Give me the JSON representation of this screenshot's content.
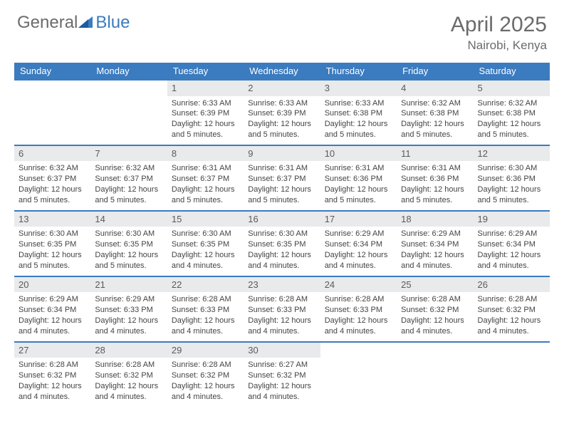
{
  "logo": {
    "text1": "General",
    "text2": "Blue"
  },
  "title": "April 2025",
  "location": "Nairobi, Kenya",
  "colors": {
    "header_bg": "#3b7bbf",
    "header_text": "#ffffff",
    "daynum_bg": "#e9eaec",
    "row_border": "#3b7bbf",
    "body_text": "#444444",
    "title_text": "#6b6b6b"
  },
  "weekdays": [
    "Sunday",
    "Monday",
    "Tuesday",
    "Wednesday",
    "Thursday",
    "Friday",
    "Saturday"
  ],
  "weeks": [
    {
      "nums": [
        "",
        "",
        "1",
        "2",
        "3",
        "4",
        "5"
      ],
      "cells": [
        null,
        null,
        {
          "sunrise": "Sunrise: 6:33 AM",
          "sunset": "Sunset: 6:39 PM",
          "day1": "Daylight: 12 hours",
          "day2": "and 5 minutes."
        },
        {
          "sunrise": "Sunrise: 6:33 AM",
          "sunset": "Sunset: 6:39 PM",
          "day1": "Daylight: 12 hours",
          "day2": "and 5 minutes."
        },
        {
          "sunrise": "Sunrise: 6:33 AM",
          "sunset": "Sunset: 6:38 PM",
          "day1": "Daylight: 12 hours",
          "day2": "and 5 minutes."
        },
        {
          "sunrise": "Sunrise: 6:32 AM",
          "sunset": "Sunset: 6:38 PM",
          "day1": "Daylight: 12 hours",
          "day2": "and 5 minutes."
        },
        {
          "sunrise": "Sunrise: 6:32 AM",
          "sunset": "Sunset: 6:38 PM",
          "day1": "Daylight: 12 hours",
          "day2": "and 5 minutes."
        }
      ]
    },
    {
      "nums": [
        "6",
        "7",
        "8",
        "9",
        "10",
        "11",
        "12"
      ],
      "cells": [
        {
          "sunrise": "Sunrise: 6:32 AM",
          "sunset": "Sunset: 6:37 PM",
          "day1": "Daylight: 12 hours",
          "day2": "and 5 minutes."
        },
        {
          "sunrise": "Sunrise: 6:32 AM",
          "sunset": "Sunset: 6:37 PM",
          "day1": "Daylight: 12 hours",
          "day2": "and 5 minutes."
        },
        {
          "sunrise": "Sunrise: 6:31 AM",
          "sunset": "Sunset: 6:37 PM",
          "day1": "Daylight: 12 hours",
          "day2": "and 5 minutes."
        },
        {
          "sunrise": "Sunrise: 6:31 AM",
          "sunset": "Sunset: 6:37 PM",
          "day1": "Daylight: 12 hours",
          "day2": "and 5 minutes."
        },
        {
          "sunrise": "Sunrise: 6:31 AM",
          "sunset": "Sunset: 6:36 PM",
          "day1": "Daylight: 12 hours",
          "day2": "and 5 minutes."
        },
        {
          "sunrise": "Sunrise: 6:31 AM",
          "sunset": "Sunset: 6:36 PM",
          "day1": "Daylight: 12 hours",
          "day2": "and 5 minutes."
        },
        {
          "sunrise": "Sunrise: 6:30 AM",
          "sunset": "Sunset: 6:36 PM",
          "day1": "Daylight: 12 hours",
          "day2": "and 5 minutes."
        }
      ]
    },
    {
      "nums": [
        "13",
        "14",
        "15",
        "16",
        "17",
        "18",
        "19"
      ],
      "cells": [
        {
          "sunrise": "Sunrise: 6:30 AM",
          "sunset": "Sunset: 6:35 PM",
          "day1": "Daylight: 12 hours",
          "day2": "and 5 minutes."
        },
        {
          "sunrise": "Sunrise: 6:30 AM",
          "sunset": "Sunset: 6:35 PM",
          "day1": "Daylight: 12 hours",
          "day2": "and 5 minutes."
        },
        {
          "sunrise": "Sunrise: 6:30 AM",
          "sunset": "Sunset: 6:35 PM",
          "day1": "Daylight: 12 hours",
          "day2": "and 4 minutes."
        },
        {
          "sunrise": "Sunrise: 6:30 AM",
          "sunset": "Sunset: 6:35 PM",
          "day1": "Daylight: 12 hours",
          "day2": "and 4 minutes."
        },
        {
          "sunrise": "Sunrise: 6:29 AM",
          "sunset": "Sunset: 6:34 PM",
          "day1": "Daylight: 12 hours",
          "day2": "and 4 minutes."
        },
        {
          "sunrise": "Sunrise: 6:29 AM",
          "sunset": "Sunset: 6:34 PM",
          "day1": "Daylight: 12 hours",
          "day2": "and 4 minutes."
        },
        {
          "sunrise": "Sunrise: 6:29 AM",
          "sunset": "Sunset: 6:34 PM",
          "day1": "Daylight: 12 hours",
          "day2": "and 4 minutes."
        }
      ]
    },
    {
      "nums": [
        "20",
        "21",
        "22",
        "23",
        "24",
        "25",
        "26"
      ],
      "cells": [
        {
          "sunrise": "Sunrise: 6:29 AM",
          "sunset": "Sunset: 6:34 PM",
          "day1": "Daylight: 12 hours",
          "day2": "and 4 minutes."
        },
        {
          "sunrise": "Sunrise: 6:29 AM",
          "sunset": "Sunset: 6:33 PM",
          "day1": "Daylight: 12 hours",
          "day2": "and 4 minutes."
        },
        {
          "sunrise": "Sunrise: 6:28 AM",
          "sunset": "Sunset: 6:33 PM",
          "day1": "Daylight: 12 hours",
          "day2": "and 4 minutes."
        },
        {
          "sunrise": "Sunrise: 6:28 AM",
          "sunset": "Sunset: 6:33 PM",
          "day1": "Daylight: 12 hours",
          "day2": "and 4 minutes."
        },
        {
          "sunrise": "Sunrise: 6:28 AM",
          "sunset": "Sunset: 6:33 PM",
          "day1": "Daylight: 12 hours",
          "day2": "and 4 minutes."
        },
        {
          "sunrise": "Sunrise: 6:28 AM",
          "sunset": "Sunset: 6:32 PM",
          "day1": "Daylight: 12 hours",
          "day2": "and 4 minutes."
        },
        {
          "sunrise": "Sunrise: 6:28 AM",
          "sunset": "Sunset: 6:32 PM",
          "day1": "Daylight: 12 hours",
          "day2": "and 4 minutes."
        }
      ]
    },
    {
      "nums": [
        "27",
        "28",
        "29",
        "30",
        "",
        "",
        ""
      ],
      "cells": [
        {
          "sunrise": "Sunrise: 6:28 AM",
          "sunset": "Sunset: 6:32 PM",
          "day1": "Daylight: 12 hours",
          "day2": "and 4 minutes."
        },
        {
          "sunrise": "Sunrise: 6:28 AM",
          "sunset": "Sunset: 6:32 PM",
          "day1": "Daylight: 12 hours",
          "day2": "and 4 minutes."
        },
        {
          "sunrise": "Sunrise: 6:28 AM",
          "sunset": "Sunset: 6:32 PM",
          "day1": "Daylight: 12 hours",
          "day2": "and 4 minutes."
        },
        {
          "sunrise": "Sunrise: 6:27 AM",
          "sunset": "Sunset: 6:32 PM",
          "day1": "Daylight: 12 hours",
          "day2": "and 4 minutes."
        },
        null,
        null,
        null
      ]
    }
  ]
}
